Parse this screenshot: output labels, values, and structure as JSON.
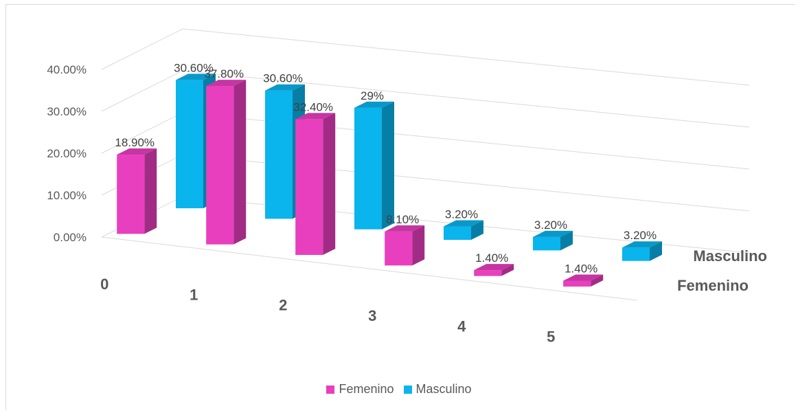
{
  "chart_data": {
    "type": "bar",
    "title": "",
    "xlabel": "",
    "ylabel": "",
    "categories": [
      "0",
      "1",
      "2",
      "3",
      "4",
      "5"
    ],
    "series": [
      {
        "name": "Femenino",
        "values": [
          18.9,
          37.8,
          32.4,
          8.1,
          1.4,
          1.4
        ],
        "labels": [
          "18.90%",
          "37.80%",
          "32.40%",
          "8.10%",
          "1.40%",
          "1.40%"
        ],
        "color": "#e83fbe"
      },
      {
        "name": "Masculino",
        "values": [
          30.6,
          30.6,
          29,
          3.2,
          3.2,
          3.2
        ],
        "labels": [
          "30.60%",
          "30.60%",
          "29%",
          "3.20%",
          "3.20%",
          "3.20%"
        ],
        "color": "#0ab4ec"
      }
    ],
    "ylim": [
      0,
      40
    ],
    "ytick_labels": [
      "0.00%",
      "10.00%",
      "20.00%",
      "30.00%",
      "40.00%"
    ],
    "depth_axis_labels": [
      "Masculino",
      "Femenino"
    ],
    "grid": true,
    "legend_position": "bottom",
    "projection": "3d"
  },
  "legend": {
    "femenino_label": "Femenino",
    "masculino_label": "Masculino"
  }
}
